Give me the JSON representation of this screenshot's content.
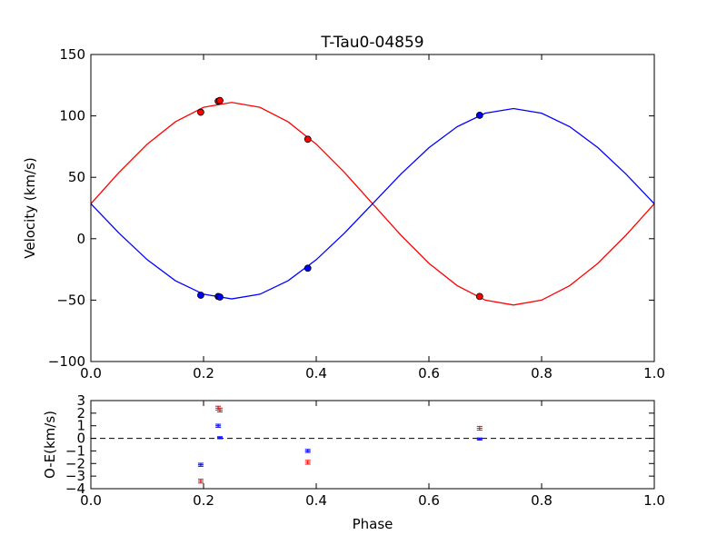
{
  "chart_data": [
    {
      "type": "line",
      "title": "T-Tau0-04859",
      "y_label": "Velocity (km/s)",
      "xlim": [
        0,
        1
      ],
      "xticks": [
        {
          "value": 0,
          "label": "0.0"
        },
        {
          "value": 0.2,
          "label": "0.2"
        },
        {
          "value": 0.4,
          "label": "0.4"
        },
        {
          "value": 0.6,
          "label": "0.6"
        },
        {
          "value": 0.8,
          "label": "0.8"
        },
        {
          "value": 1,
          "label": "1.0"
        }
      ],
      "ylim": [
        -100,
        150
      ],
      "yticks": [
        {
          "value": -100,
          "label": "−100"
        },
        {
          "value": -50,
          "label": "−50"
        },
        0,
        50,
        100,
        150
      ],
      "series": [
        {
          "mode": "line",
          "color": "#ff0000",
          "x": [
            0,
            0.05,
            0.1,
            0.15,
            0.2,
            0.25,
            0.3,
            0.35,
            0.4,
            0.45,
            0.5,
            0.55,
            0.6,
            0.65,
            0.7,
            0.75,
            0.8,
            0.85,
            0.9,
            0.95,
            1
          ],
          "values": [
            28.5,
            54.0,
            77.0,
            95.2,
            107.0,
            111.0,
            107.0,
            95.2,
            77.0,
            54.0,
            28.5,
            3.0,
            -20.0,
            -38.2,
            -50.0,
            -54.0,
            -50.0,
            -38.2,
            -20.0,
            3.0,
            28.5
          ]
        },
        {
          "mode": "line",
          "color": "#0000ff",
          "x": [
            0,
            0.05,
            0.1,
            0.15,
            0.2,
            0.25,
            0.3,
            0.35,
            0.4,
            0.45,
            0.5,
            0.55,
            0.6,
            0.65,
            0.7,
            0.75,
            0.8,
            0.85,
            0.9,
            0.95,
            1
          ],
          "values": [
            28.5,
            4.5,
            -17.1,
            -34.2,
            -45.2,
            -49.0,
            -45.2,
            -34.2,
            -17.1,
            4.5,
            28.5,
            52.5,
            74.1,
            91.2,
            102.2,
            106.0,
            102.2,
            91.2,
            74.1,
            52.5,
            28.5
          ]
        },
        {
          "mode": "markers",
          "color": "#ff0000",
          "x": [
            0.195,
            0.226,
            0.229,
            0.385,
            0.69
          ],
          "values": [
            103,
            112,
            112.5,
            81,
            -47
          ]
        },
        {
          "mode": "markers",
          "color": "#0000ff",
          "x": [
            0.195,
            0.226,
            0.229,
            0.385,
            0.69
          ],
          "values": [
            -46,
            -47,
            -47.5,
            -24,
            100.5
          ]
        }
      ]
    },
    {
      "type": "errorbar",
      "y_label": "O-E(km/s)",
      "x_label": "Phase",
      "xlim": [
        0,
        1
      ],
      "xticks": [
        {
          "value": 0,
          "label": "0.0"
        },
        {
          "value": 0.2,
          "label": "0.2"
        },
        {
          "value": 0.4,
          "label": "0.4"
        },
        {
          "value": 0.6,
          "label": "0.6"
        },
        {
          "value": 0.8,
          "label": "0.8"
        },
        {
          "value": 1,
          "label": "1.0"
        }
      ],
      "ylim": [
        -4,
        3
      ],
      "yticks": [
        {
          "value": -4,
          "label": "−4"
        },
        {
          "value": -3,
          "label": "−3"
        },
        {
          "value": -2,
          "label": "−2"
        },
        {
          "value": -1,
          "label": "−1"
        },
        0,
        1,
        2,
        3
      ],
      "hline": 0,
      "series": [
        {
          "color": "#ff0000",
          "x": [
            0.195,
            0.226,
            0.229,
            0.385,
            0.69
          ],
          "values": [
            -3.4,
            2.4,
            2.25,
            -1.9,
            0.8
          ],
          "errors": [
            0.15,
            0.15,
            0.15,
            0.15,
            0.15
          ]
        },
        {
          "color": "#0000ff",
          "x": [
            0.195,
            0.226,
            0.229,
            0.385,
            0.69
          ],
          "values": [
            -2.1,
            1.0,
            0.05,
            -1.0,
            -0.05
          ],
          "errors": [
            0.12,
            0.12,
            0.08,
            0.12,
            0.08
          ]
        }
      ]
    }
  ]
}
